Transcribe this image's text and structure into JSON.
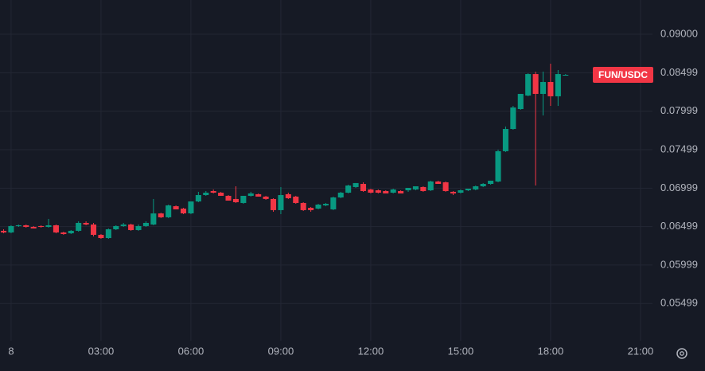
{
  "chart_data": {
    "type": "candlestick",
    "symbol": "FUN/USDC",
    "up_color": "#089981",
    "down_color": "#f23645",
    "grid": true,
    "xlim": [
      -0.37,
      21.4
    ],
    "ylim": [
      0.05015,
      0.09445
    ],
    "xticks": [
      {
        "value": 0,
        "label": "8"
      },
      {
        "value": 3,
        "label": "03:00"
      },
      {
        "value": 6,
        "label": "06:00"
      },
      {
        "value": 9,
        "label": "09:00"
      },
      {
        "value": 12,
        "label": "12:00"
      },
      {
        "value": 15,
        "label": "15:00"
      },
      {
        "value": 18,
        "label": "18:00"
      },
      {
        "value": 21,
        "label": "21:00"
      }
    ],
    "yticks": [
      {
        "value": 0.09,
        "label": "0.09000"
      },
      {
        "value": 0.08499,
        "label": "0.08499"
      },
      {
        "value": 0.07999,
        "label": "0.07999"
      },
      {
        "value": 0.07499,
        "label": "0.07499"
      },
      {
        "value": 0.06999,
        "label": "0.06999"
      },
      {
        "value": 0.06499,
        "label": "0.06499"
      },
      {
        "value": 0.05999,
        "label": "0.05999"
      },
      {
        "value": 0.05499,
        "label": "0.05499"
      }
    ],
    "x": [
      -0.25,
      0,
      0.25,
      0.5,
      0.75,
      1,
      1.25,
      1.5,
      1.75,
      2,
      2.25,
      2.5,
      2.75,
      3,
      3.25,
      3.5,
      3.75,
      4,
      4.25,
      4.5,
      4.75,
      5,
      5.25,
      5.5,
      5.75,
      6,
      6.25,
      6.5,
      6.75,
      7,
      7.25,
      7.5,
      7.75,
      8,
      8.25,
      8.5,
      8.75,
      9,
      9.25,
      9.5,
      9.75,
      10,
      10.25,
      10.5,
      10.75,
      11,
      11.25,
      11.5,
      11.75,
      12,
      12.25,
      12.5,
      12.75,
      13,
      13.25,
      13.5,
      13.75,
      14,
      14.25,
      14.5,
      14.75,
      15,
      15.25,
      15.5,
      15.75,
      16,
      16.25,
      16.5,
      16.75,
      17,
      17.25,
      17.5,
      17.75,
      18,
      18.25,
      18.5
    ],
    "open": [
      0.06444,
      0.06423,
      0.06506,
      0.06516,
      0.06495,
      0.06506,
      0.06495,
      0.06516,
      0.06423,
      0.06412,
      0.06444,
      0.06547,
      0.06526,
      0.06392,
      0.0635,
      0.06464,
      0.06506,
      0.06526,
      0.06454,
      0.06506,
      0.06526,
      0.0667,
      0.0662,
      0.06764,
      0.06733,
      0.06671,
      0.06826,
      0.06909,
      0.06961,
      0.0694,
      0.06899,
      0.06858,
      0.06806,
      0.06899,
      0.0692,
      0.06889,
      0.06858,
      0.06713,
      0.0692,
      0.06889,
      0.06806,
      0.06743,
      0.06733,
      0.06775,
      0.06723,
      0.06878,
      0.0694,
      0.07013,
      0.07054,
      0.06982,
      0.06971,
      0.06961,
      0.0694,
      0.06961,
      0.06971,
      0.06982,
      0.07013,
      0.06971,
      0.07085,
      0.07075,
      0.06951,
      0.0694,
      0.06971,
      0.06982,
      0.07023,
      0.07054,
      0.07085,
      0.07479,
      0.07768,
      0.08027,
      0.08203,
      0.08482,
      0.08224,
      0.08379,
      0.08193,
      0.08472
    ],
    "high": [
      0.06464,
      0.06516,
      0.06526,
      0.06526,
      0.06506,
      0.06516,
      0.06599,
      0.06526,
      0.06433,
      0.06454,
      0.06568,
      0.06568,
      0.06547,
      0.06402,
      0.06475,
      0.06516,
      0.06547,
      0.06537,
      0.06526,
      0.06568,
      0.06858,
      0.0668,
      0.06785,
      0.06775,
      0.06743,
      0.06826,
      0.06951,
      0.06961,
      0.06982,
      0.0695,
      0.06909,
      0.07023,
      0.06899,
      0.06951,
      0.0693,
      0.06899,
      0.06868,
      0.07013,
      0.0694,
      0.06899,
      0.06816,
      0.06754,
      0.06795,
      0.06806,
      0.06889,
      0.06951,
      0.07044,
      0.07065,
      0.07075,
      0.06992,
      0.06982,
      0.06971,
      0.06992,
      0.06971,
      0.07002,
      0.07023,
      0.07023,
      0.07096,
      0.07096,
      0.07085,
      0.06961,
      0.06982,
      0.06992,
      0.07033,
      0.07065,
      0.07096,
      0.075,
      0.078,
      0.08068,
      0.08224,
      0.08492,
      0.08514,
      0.08514,
      0.08617,
      0.08534,
      0.08482
    ],
    "low": [
      0.06412,
      0.06412,
      0.06495,
      0.06485,
      0.06475,
      0.06485,
      0.06485,
      0.06412,
      0.06392,
      0.06402,
      0.06433,
      0.06516,
      0.06371,
      0.0634,
      0.0634,
      0.06454,
      0.06495,
      0.06444,
      0.06444,
      0.06495,
      0.06516,
      0.0661,
      0.0661,
      0.06723,
      0.06661,
      0.06661,
      0.06816,
      0.06899,
      0.0693,
      0.06899,
      0.06837,
      0.06806,
      0.06795,
      0.06889,
      0.06889,
      0.06847,
      0.06692,
      0.06661,
      0.06858,
      0.06795,
      0.06702,
      0.06692,
      0.06723,
      0.06764,
      0.06713,
      0.06868,
      0.0693,
      0.07002,
      0.06951,
      0.0693,
      0.0693,
      0.0693,
      0.0693,
      0.0693,
      0.06951,
      0.06971,
      0.06951,
      0.06961,
      0.07054,
      0.06951,
      0.06909,
      0.0693,
      0.06961,
      0.06971,
      0.07013,
      0.07044,
      0.07075,
      0.07469,
      0.07758,
      0.08017,
      0.08193,
      0.07033,
      0.07944,
      0.08068,
      0.08068,
      0.08462
    ],
    "close": [
      0.06423,
      0.06506,
      0.06516,
      0.06495,
      0.06475,
      0.06495,
      0.06516,
      0.06423,
      0.06402,
      0.06444,
      0.06547,
      0.06526,
      0.06392,
      0.0635,
      0.06464,
      0.06506,
      0.06526,
      0.06454,
      0.06506,
      0.06547,
      0.0667,
      0.0662,
      0.06775,
      0.06723,
      0.06671,
      0.06826,
      0.06909,
      0.0694,
      0.0694,
      0.06899,
      0.06837,
      0.06816,
      0.06899,
      0.0693,
      0.06889,
      0.06858,
      0.06713,
      0.06909,
      0.06868,
      0.06806,
      0.06713,
      0.06713,
      0.06785,
      0.06795,
      0.06878,
      0.0694,
      0.07033,
      0.07065,
      0.06961,
      0.0694,
      0.0694,
      0.0693,
      0.06982,
      0.0693,
      0.07002,
      0.07023,
      0.06961,
      0.07086,
      0.07054,
      0.06961,
      0.0693,
      0.06971,
      0.06992,
      0.07023,
      0.07054,
      0.07096,
      0.07479,
      0.07768,
      0.08048,
      0.08224,
      0.08482,
      0.08224,
      0.08379,
      0.08193,
      0.08482,
      0.08472
    ]
  }
}
